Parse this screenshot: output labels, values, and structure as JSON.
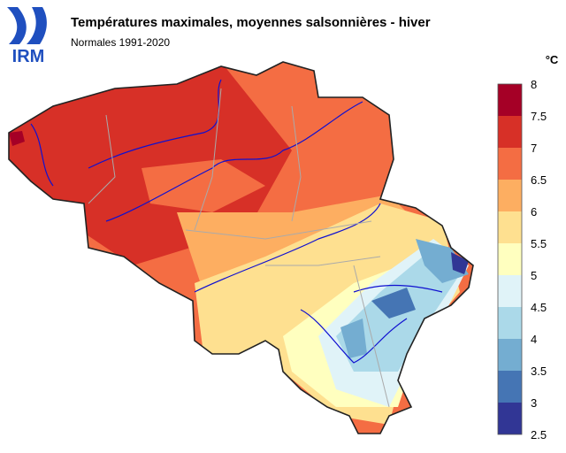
{
  "logo": "IRM",
  "title": "Températures maximales, moyennes salsonnières - hiver",
  "subtitle": "Normales 1991-2020",
  "legend": {
    "unit": "°C",
    "ticks": [
      2.5,
      3,
      3.5,
      4,
      4.5,
      5,
      5.5,
      6,
      6.5,
      7,
      7.5,
      8
    ],
    "colors": [
      "#313695",
      "#4575b4",
      "#74add1",
      "#abd9e9",
      "#e0f3f8",
      "#ffffbf",
      "#fee090",
      "#fdae61",
      "#f46d43",
      "#d73027",
      "#a50026"
    ]
  }
}
